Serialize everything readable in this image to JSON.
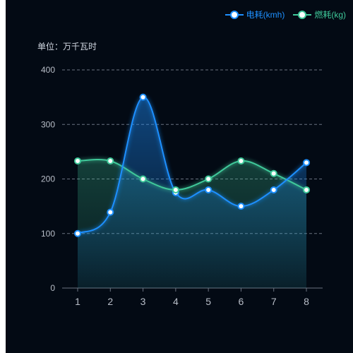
{
  "unit_label": "单位：万千瓦时",
  "chart_data": {
    "type": "line",
    "categories": [
      "1",
      "2",
      "3",
      "4",
      "5",
      "6",
      "7",
      "8"
    ],
    "ylim": [
      0,
      400
    ],
    "yticks": [
      0,
      100,
      200,
      300,
      400
    ],
    "grid": true,
    "legend_position": "top-right",
    "series": [
      {
        "name": "电耗(kmh)",
        "color": "#1e90ff",
        "values": [
          100,
          139,
          350,
          175,
          180,
          150,
          180,
          230
        ]
      },
      {
        "name": "燃耗(kg)",
        "color": "#3fc99a",
        "values": [
          233,
          233,
          200,
          180,
          200,
          233,
          210,
          180
        ]
      }
    ]
  }
}
